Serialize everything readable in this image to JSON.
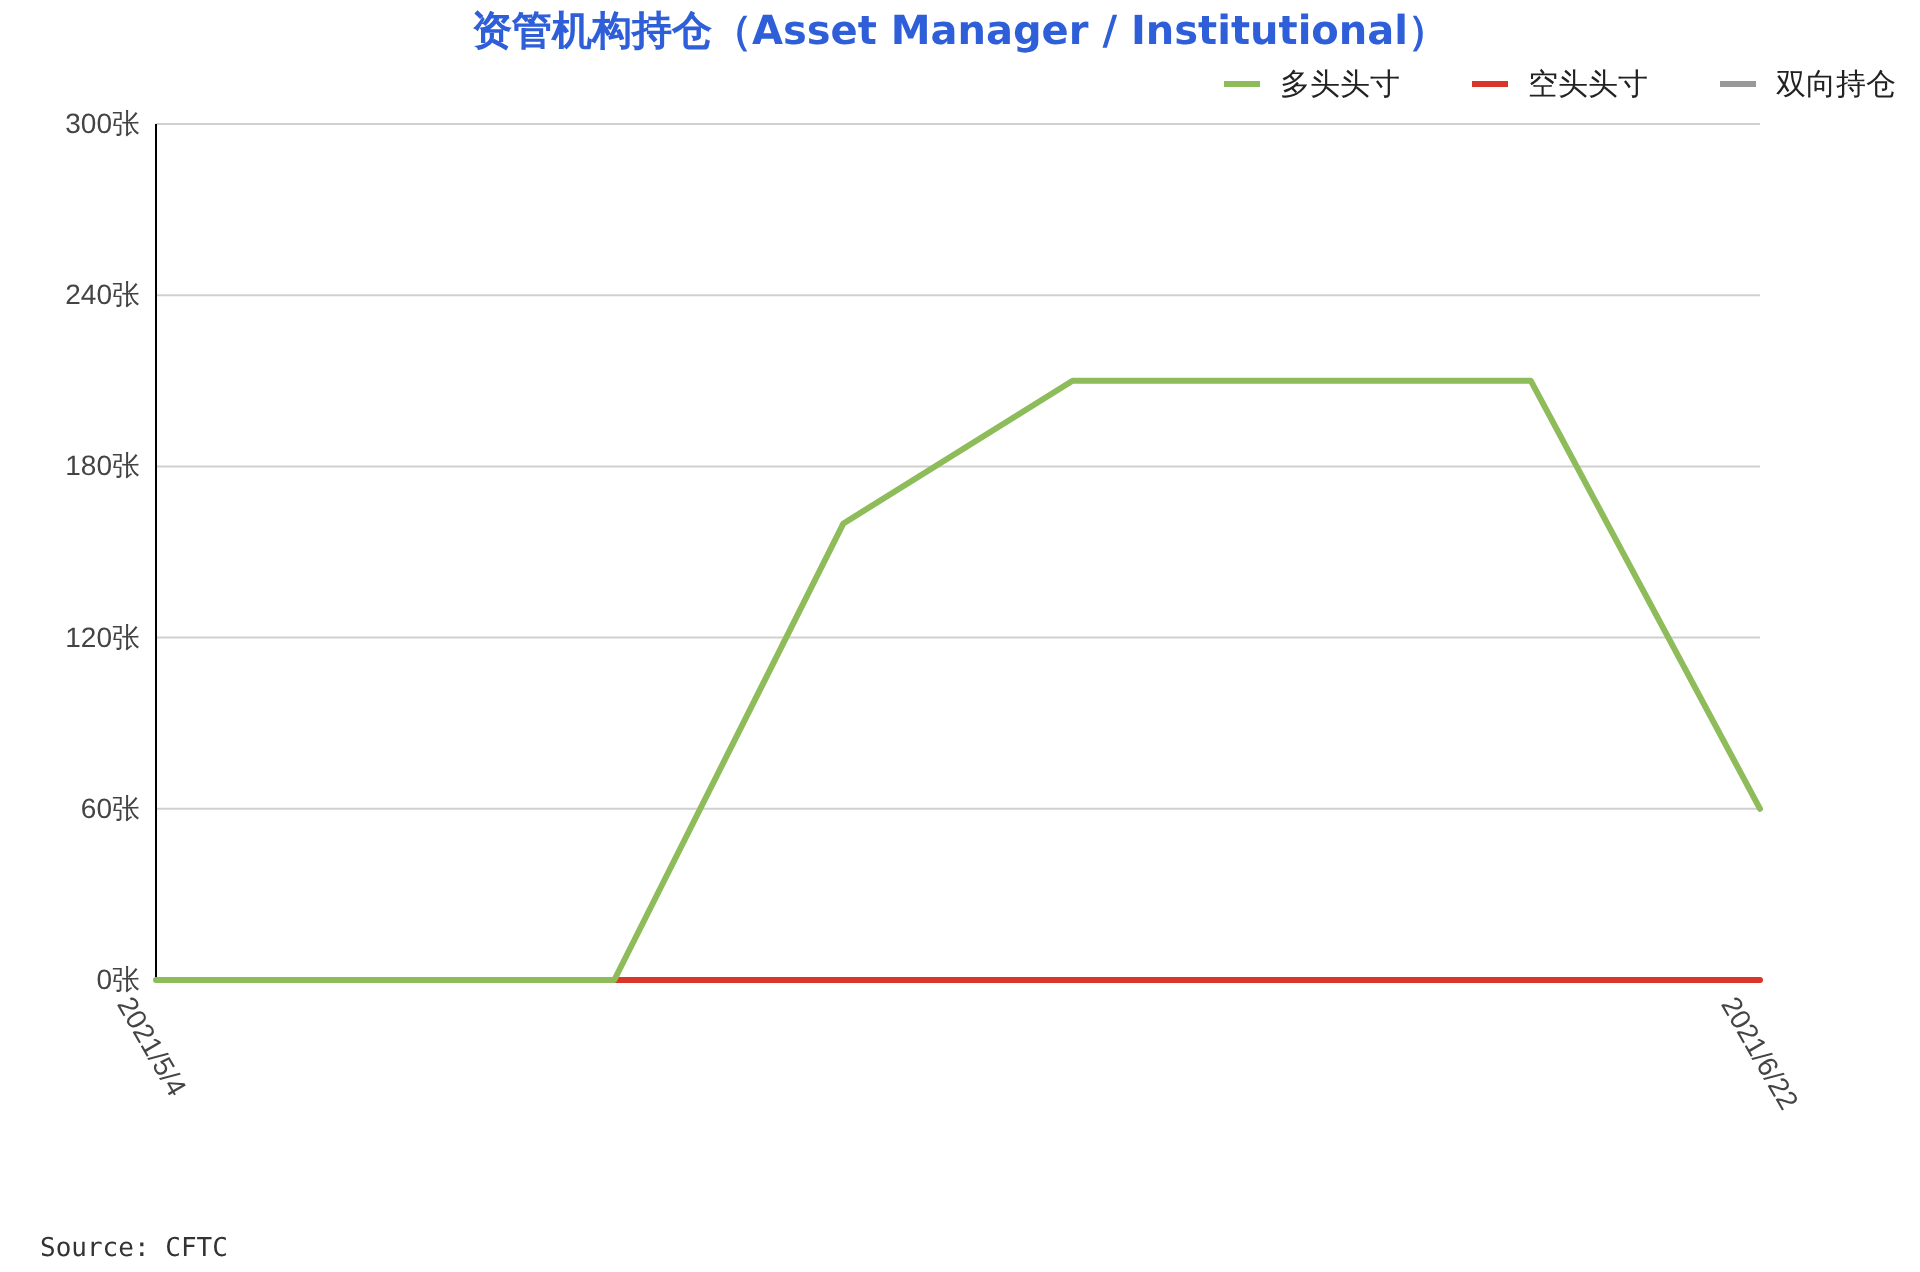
{
  "chart_data": {
    "type": "line",
    "title": "资管机构持仓（Asset Manager / Institutional）",
    "annotations": [
      "Source: CFTC"
    ],
    "x": [
      "2021-05-04",
      "2021-05-11",
      "2021-05-18",
      "2021-05-25",
      "2021-06-01",
      "2021-06-08",
      "2021-06-15",
      "2021-06-22"
    ],
    "xlim": [
      "2021-05-04",
      "2021-06-22"
    ],
    "xticks": [
      {
        "value": "2021-05-04",
        "label": "2021/5/4"
      },
      {
        "value": "2021-06-22",
        "label": "2021/6/22"
      }
    ],
    "ylim": [
      0,
      300
    ],
    "yticks": [
      {
        "value": 0,
        "label": "0张"
      },
      {
        "value": 60,
        "label": "60张"
      },
      {
        "value": 120,
        "label": "120张"
      },
      {
        "value": 180,
        "label": "180张"
      },
      {
        "value": 240,
        "label": "240张"
      },
      {
        "value": 300,
        "label": "300张"
      }
    ],
    "grid": "y",
    "legend": "top right",
    "marker": "none",
    "line_style": "solid",
    "series": [
      {
        "name": "多头头寸",
        "color": "#8fbc5a",
        "values": [
          0,
          0,
          0,
          160,
          210,
          210,
          210,
          60
        ]
      },
      {
        "name": "空头头寸",
        "color": "#d9352a",
        "values": [
          null,
          null,
          0,
          0,
          0,
          0,
          0,
          0
        ]
      },
      {
        "name": "双向持仓",
        "color": "#999999",
        "values": [
          null,
          null,
          null,
          null,
          null,
          null,
          null,
          null
        ]
      }
    ]
  }
}
